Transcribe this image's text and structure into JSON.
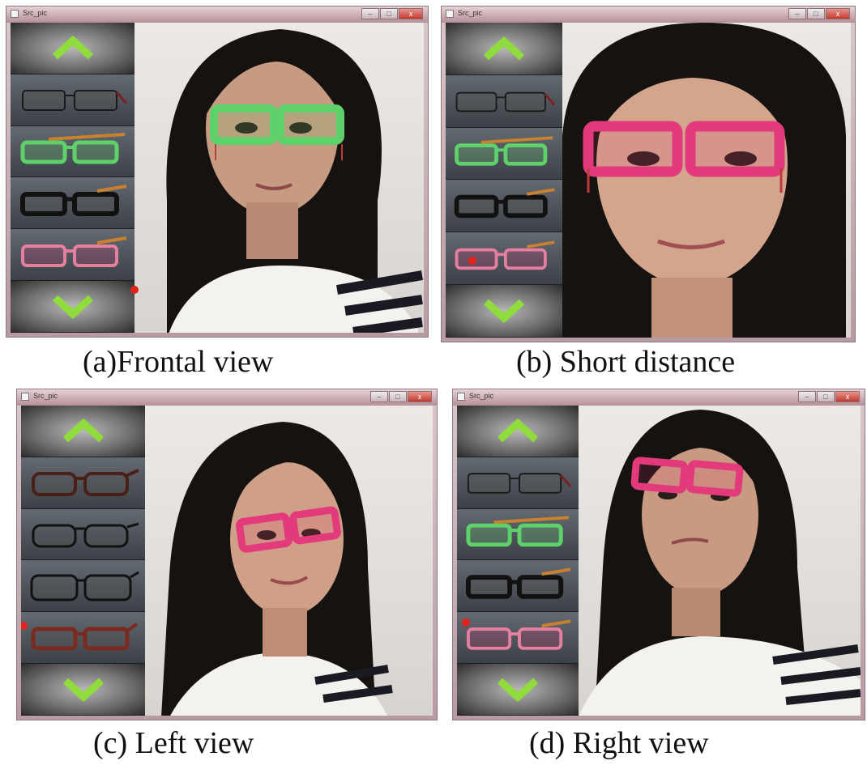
{
  "window_title": "Src_pic",
  "window_controls": {
    "minimize": "–",
    "maximize": "□",
    "close": "x"
  },
  "colors": {
    "green_frame": "#5fd16a",
    "pink_frame": "#e23a7a",
    "black_frame": "#111111",
    "brown_frame": "#7a2a1e",
    "temple_orange": "#c9812f",
    "arrow_green": "#8fdc3c",
    "cursor_red": "#e0241c"
  },
  "panels": [
    {
      "caption": "(a)Frontal view"
    },
    {
      "caption": "(b) Short distance"
    },
    {
      "caption": "(c) Left view"
    },
    {
      "caption": "(d) Right view"
    }
  ]
}
